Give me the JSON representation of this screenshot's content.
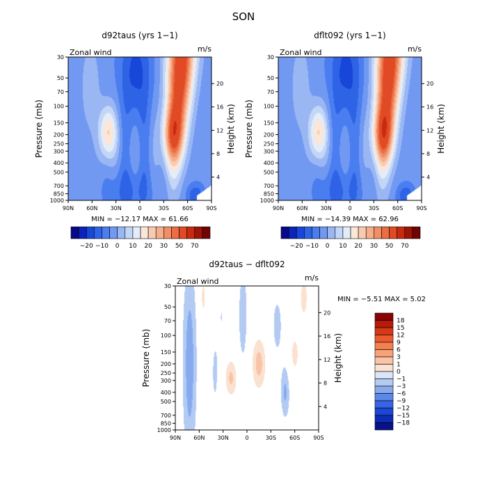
{
  "figure_title": "SON",
  "chart_data": [
    {
      "type": "heatmap",
      "title": "d92taus (yrs 1−1)",
      "left_label": "Zonal wind",
      "right_label": "m/s",
      "x_tick_labels": [
        "90N",
        "60N",
        "30N",
        "0",
        "30S",
        "60S",
        "90S"
      ],
      "x_values": [
        90,
        60,
        30,
        0,
        -30,
        -60,
        -90
      ],
      "xlim": [
        90,
        -90
      ],
      "y_tick_labels": [
        "30",
        "50",
        "70",
        "100",
        "150",
        "200",
        "250",
        "300",
        "400",
        "500",
        "700",
        "850",
        "1000"
      ],
      "y_values": [
        30,
        50,
        70,
        100,
        150,
        200,
        250,
        300,
        400,
        500,
        700,
        850,
        1000
      ],
      "ylim": [
        30,
        1000
      ],
      "y_scale": "log",
      "ylabel": "Pressure (mb)",
      "y2_tick_labels": [
        "4",
        "8",
        "12",
        "16",
        "20"
      ],
      "y2_values": [
        4,
        8,
        12,
        16,
        20
      ],
      "y2label": "Height (km)",
      "stats_text": "MIN = −12.17   MAX =  61.66",
      "min": -12.17,
      "max": 61.66,
      "jet_tilt": 0,
      "colorbar": {
        "orientation": "horizontal",
        "tick_labels": [
          "−20",
          "−10",
          "0",
          "10",
          "20",
          "30",
          "50",
          "70"
        ],
        "colors": [
          "#08088a",
          "#0b23b8",
          "#1746d8",
          "#2f63e6",
          "#4a7df0",
          "#7199f2",
          "#9ab7f4",
          "#c3d6f6",
          "#e2ecfa",
          "#fbe6d8",
          "#f8cbb1",
          "#f4ae8c",
          "#f08e66",
          "#ec6c43",
          "#e04a24",
          "#c82a10",
          "#9c1406",
          "#720303"
        ]
      },
      "contour_levels": [
        -25,
        -20,
        -15,
        -10,
        -5,
        0,
        5,
        10,
        15,
        20,
        25,
        30,
        35,
        40,
        50,
        60,
        70
      ]
    },
    {
      "type": "heatmap",
      "title": "dflt092 (yrs 1−1)",
      "left_label": "Zonal wind",
      "right_label": "m/s",
      "x_tick_labels": [
        "90N",
        "60N",
        "30N",
        "0",
        "30S",
        "60S",
        "90S"
      ],
      "x_values": [
        90,
        60,
        30,
        0,
        -30,
        -60,
        -90
      ],
      "xlim": [
        90,
        -90
      ],
      "y_tick_labels": [
        "30",
        "50",
        "70",
        "100",
        "150",
        "200",
        "250",
        "300",
        "400",
        "500",
        "700",
        "850",
        "1000"
      ],
      "y_values": [
        30,
        50,
        70,
        100,
        150,
        200,
        250,
        300,
        400,
        500,
        700,
        850,
        1000
      ],
      "ylim": [
        30,
        1000
      ],
      "y_scale": "log",
      "ylabel": "Pressure (mb)",
      "y2_tick_labels": [
        "4",
        "8",
        "12",
        "16",
        "20"
      ],
      "y2_values": [
        4,
        8,
        12,
        16,
        20
      ],
      "y2label": "Height (km)",
      "stats_text": "MIN = −14.39   MAX =  62.96",
      "min": -14.39,
      "max": 62.96,
      "jet_tilt": 1,
      "colorbar": {
        "orientation": "horizontal",
        "tick_labels": [
          "−20",
          "−10",
          "0",
          "10",
          "20",
          "30",
          "50",
          "70"
        ],
        "colors": [
          "#08088a",
          "#0b23b8",
          "#1746d8",
          "#2f63e6",
          "#4a7df0",
          "#7199f2",
          "#9ab7f4",
          "#c3d6f6",
          "#e2ecfa",
          "#fbe6d8",
          "#f8cbb1",
          "#f4ae8c",
          "#f08e66",
          "#ec6c43",
          "#e04a24",
          "#c82a10",
          "#9c1406",
          "#720303"
        ]
      },
      "contour_levels": [
        -25,
        -20,
        -15,
        -10,
        -5,
        0,
        5,
        10,
        15,
        20,
        25,
        30,
        35,
        40,
        50,
        60,
        70
      ]
    },
    {
      "type": "heatmap",
      "title": "d92taus − dflt092",
      "left_label": "Zonal wind",
      "right_label": "m/s",
      "x_tick_labels": [
        "90N",
        "60N",
        "30N",
        "0",
        "30S",
        "60S",
        "90S"
      ],
      "x_values": [
        90,
        60,
        30,
        0,
        -30,
        -60,
        -90
      ],
      "xlim": [
        90,
        -90
      ],
      "y_tick_labels": [
        "30",
        "50",
        "70",
        "100",
        "150",
        "200",
        "250",
        "300",
        "400",
        "500",
        "700",
        "850",
        "1000"
      ],
      "y_values": [
        30,
        50,
        70,
        100,
        150,
        200,
        250,
        300,
        400,
        500,
        700,
        850,
        1000
      ],
      "ylim": [
        30,
        1000
      ],
      "y_scale": "log",
      "ylabel": "Pressure (mb)",
      "y2_tick_labels": [
        "4",
        "8",
        "12",
        "16",
        "20"
      ],
      "y2_values": [
        4,
        8,
        12,
        16,
        20
      ],
      "y2label": "Height (km)",
      "stats_text": "MIN =   −5.51   MAX =   5.02",
      "min": -5.51,
      "max": 5.02,
      "colorbar": {
        "orientation": "vertical",
        "tick_labels": [
          "18",
          "15",
          "12",
          "9",
          "6",
          "3",
          "1",
          "0",
          "−1",
          "−3",
          "−6",
          "−9",
          "−12",
          "−15",
          "−18"
        ],
        "colors": [
          "#8a0202",
          "#b81a0a",
          "#d83816",
          "#ec5a30",
          "#f3804f",
          "#f7a27a",
          "#f9c3a6",
          "#fbe1cf",
          "#d9e6f8",
          "#b3cbf3",
          "#86aaee",
          "#5c88ea",
          "#3565e4",
          "#1c46d4",
          "#0c2cb4",
          "#08108a"
        ]
      },
      "contour_levels": [
        -1,
        1
      ]
    }
  ]
}
